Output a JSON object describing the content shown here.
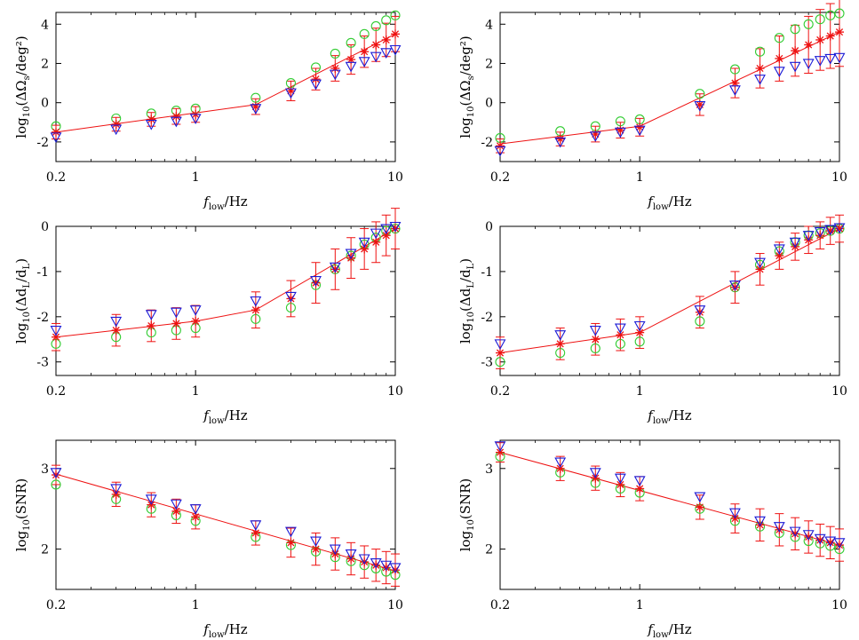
{
  "chart_data": [
    {
      "type": "scatter",
      "x_scale": "log",
      "xlim": [
        0.2,
        10
      ],
      "ylim": [
        -3,
        4.6
      ],
      "x_ticks": [
        0.2,
        1,
        10
      ],
      "x_tick_labels": [
        "0.2",
        "1",
        "10"
      ],
      "y_ticks": [
        -2,
        0,
        2,
        4
      ],
      "y_tick_labels": [
        "-2",
        "0",
        "2",
        "4"
      ],
      "xlabel": {
        "main": "f",
        "sub": "low",
        "rest": "/Hz"
      },
      "ylabel": {
        "pre": "log",
        "sub": "10",
        "rest": "(ΔΩ",
        "sub2": "s",
        "tail": "/deg²)"
      },
      "x": [
        0.2,
        0.4,
        0.6,
        0.8,
        1,
        2,
        3,
        4,
        5,
        6,
        7,
        8,
        9,
        10
      ],
      "series": [
        {
          "name": "green-circles",
          "marker": "circle",
          "color": "#33cc33",
          "values": [
            -1.2,
            -0.8,
            -0.55,
            -0.4,
            -0.3,
            0.25,
            1.0,
            1.8,
            2.5,
            3.05,
            3.5,
            3.9,
            4.2,
            4.45
          ]
        },
        {
          "name": "red-stars",
          "marker": "star",
          "color": "#ee1111",
          "values": [
            -1.5,
            -1.1,
            -0.85,
            -0.7,
            -0.6,
            -0.2,
            0.6,
            1.2,
            1.75,
            2.2,
            2.6,
            2.95,
            3.2,
            3.5
          ],
          "error": [
            0.35,
            0.35,
            0.35,
            0.4,
            0.4,
            0.4,
            0.5,
            0.55,
            0.65,
            0.75,
            0.8,
            0.85,
            0.85,
            0.9
          ]
        },
        {
          "name": "blue-triangles",
          "marker": "triangle-down",
          "color": "#1a1ad6",
          "values": [
            -1.75,
            -1.35,
            -1.1,
            -0.95,
            -0.8,
            -0.3,
            0.5,
            0.95,
            1.45,
            1.85,
            2.1,
            2.35,
            2.55,
            2.7
          ]
        }
      ],
      "fit_line": [
        [
          0.2,
          -1.5
        ],
        [
          2,
          -0.1
        ],
        [
          10,
          3.5
        ]
      ]
    },
    {
      "type": "scatter",
      "x_scale": "log",
      "xlim": [
        0.2,
        10
      ],
      "ylim": [
        -3,
        4.6
      ],
      "x_ticks": [
        0.2,
        1,
        10
      ],
      "x_tick_labels": [
        "0.2",
        "1",
        "10"
      ],
      "y_ticks": [
        -2,
        0,
        2,
        4
      ],
      "y_tick_labels": [
        "-2",
        "0",
        "2",
        "4"
      ],
      "xlabel": {
        "main": "f",
        "sub": "low",
        "rest": "/Hz"
      },
      "ylabel": {
        "pre": "log",
        "sub": "10",
        "rest": "(ΔΩ",
        "sub2": "s",
        "tail": "/deg²)"
      },
      "x": [
        0.2,
        0.4,
        0.6,
        0.8,
        1,
        2,
        3,
        4,
        5,
        6,
        7,
        8,
        9,
        10
      ],
      "series": [
        {
          "name": "green-circles",
          "marker": "circle",
          "color": "#33cc33",
          "values": [
            -1.8,
            -1.45,
            -1.2,
            -0.95,
            -0.85,
            0.45,
            1.7,
            2.6,
            3.3,
            3.75,
            4.0,
            4.25,
            4.45,
            4.55
          ]
        },
        {
          "name": "red-stars",
          "marker": "star",
          "color": "#ee1111",
          "values": [
            -2.2,
            -1.85,
            -1.6,
            -1.4,
            -1.25,
            -0.1,
            1.0,
            1.75,
            2.25,
            2.65,
            2.95,
            3.2,
            3.4,
            3.6
          ]
        },
        {
          "name": "blue-triangles",
          "marker": "triangle-down",
          "color": "#1a1ad6",
          "values": [
            -2.45,
            -2.0,
            -1.7,
            -1.5,
            -1.4,
            -0.15,
            0.65,
            1.2,
            1.6,
            1.85,
            2.0,
            2.15,
            2.25,
            2.3
          ]
        }
      ],
      "errors_red": [
        0.35,
        0.35,
        0.4,
        0.4,
        0.45,
        0.55,
        0.75,
        1.0,
        1.15,
        1.3,
        1.45,
        1.55,
        1.65,
        1.75
      ],
      "fit_line": [
        [
          0.2,
          -2.1
        ],
        [
          1,
          -1.2
        ],
        [
          10,
          3.6
        ]
      ]
    },
    {
      "type": "scatter",
      "x_scale": "log",
      "xlim": [
        0.2,
        10
      ],
      "ylim": [
        -3.3,
        0
      ],
      "x_ticks": [
        0.2,
        1,
        10
      ],
      "x_tick_labels": [
        "0.2",
        "1",
        "10"
      ],
      "y_ticks": [
        -3,
        -2,
        -1,
        0
      ],
      "y_tick_labels": [
        "-3",
        "-2",
        "-1",
        "0"
      ],
      "xlabel": {
        "main": "f",
        "sub": "low",
        "rest": "/Hz"
      },
      "ylabel": {
        "pre": "log",
        "sub": "10",
        "rest": "(Δd",
        "sub2": "L",
        "tail": "/d",
        "sub3": "L",
        "end": ")"
      },
      "x": [
        0.2,
        0.4,
        0.6,
        0.8,
        1,
        2,
        3,
        4,
        5,
        6,
        7,
        8,
        9,
        10
      ],
      "series": [
        {
          "name": "green-circles",
          "marker": "circle",
          "color": "#33cc33",
          "values": [
            -2.6,
            -2.45,
            -2.35,
            -2.3,
            -2.25,
            -2.05,
            -1.8,
            -1.3,
            -0.95,
            -0.65,
            -0.4,
            -0.25,
            -0.1,
            -0.05
          ]
        },
        {
          "name": "red-stars",
          "marker": "star",
          "color": "#ee1111",
          "values": [
            -2.45,
            -2.3,
            -2.2,
            -2.15,
            -2.1,
            -1.85,
            -1.6,
            -1.25,
            -0.95,
            -0.7,
            -0.5,
            -0.35,
            -0.2,
            -0.05
          ],
          "error": [
            0.3,
            0.35,
            0.35,
            0.35,
            0.35,
            0.4,
            0.4,
            0.45,
            0.45,
            0.45,
            0.45,
            0.45,
            0.45,
            0.45
          ]
        },
        {
          "name": "blue-triangles",
          "marker": "triangle-down",
          "color": "#1a1ad6",
          "values": [
            -2.3,
            -2.1,
            -1.95,
            -1.9,
            -1.85,
            -1.65,
            -1.55,
            -1.2,
            -0.9,
            -0.6,
            -0.35,
            -0.15,
            -0.05,
            0.0
          ]
        }
      ],
      "fit_line": [
        [
          0.2,
          -2.45
        ],
        [
          1,
          -2.1
        ],
        [
          2,
          -1.85
        ],
        [
          10,
          -0.05
        ]
      ]
    },
    {
      "type": "scatter",
      "x_scale": "log",
      "xlim": [
        0.2,
        10
      ],
      "ylim": [
        -3.3,
        0
      ],
      "x_ticks": [
        0.2,
        1,
        10
      ],
      "x_tick_labels": [
        "0.2",
        "1",
        "10"
      ],
      "y_ticks": [
        -3,
        -2,
        -1,
        0
      ],
      "y_tick_labels": [
        "-3",
        "-2",
        "-1",
        "0"
      ],
      "xlabel": {
        "main": "f",
        "sub": "low",
        "rest": "/Hz"
      },
      "ylabel": {
        "pre": "log",
        "sub": "10",
        "rest": "(Δd",
        "sub2": "L",
        "tail": "/d",
        "sub3": "L",
        "end": ")"
      },
      "x": [
        0.2,
        0.4,
        0.6,
        0.8,
        1,
        2,
        3,
        4,
        5,
        6,
        7,
        8,
        9,
        10
      ],
      "series": [
        {
          "name": "green-circles",
          "marker": "circle",
          "color": "#33cc33",
          "values": [
            -3.0,
            -2.8,
            -2.7,
            -2.6,
            -2.55,
            -2.1,
            -1.35,
            -0.85,
            -0.55,
            -0.35,
            -0.2,
            -0.15,
            -0.1,
            -0.05
          ]
        },
        {
          "name": "red-stars",
          "marker": "star",
          "color": "#ee1111",
          "values": [
            -2.8,
            -2.6,
            -2.5,
            -2.4,
            -2.35,
            -1.9,
            -1.35,
            -0.95,
            -0.65,
            -0.45,
            -0.3,
            -0.2,
            -0.1,
            -0.05
          ],
          "error": [
            0.35,
            0.35,
            0.35,
            0.35,
            0.35,
            0.35,
            0.35,
            0.35,
            0.3,
            0.3,
            0.3,
            0.3,
            0.3,
            0.3
          ]
        },
        {
          "name": "blue-triangles",
          "marker": "triangle-down",
          "color": "#1a1ad6",
          "values": [
            -2.6,
            -2.4,
            -2.3,
            -2.25,
            -2.2,
            -1.85,
            -1.3,
            -0.8,
            -0.5,
            -0.35,
            -0.2,
            -0.12,
            -0.07,
            -0.03
          ]
        }
      ],
      "fit_line": [
        [
          0.2,
          -2.8
        ],
        [
          1,
          -2.35
        ],
        [
          10,
          -0.05
        ]
      ]
    },
    {
      "type": "scatter",
      "x_scale": "log",
      "xlim": [
        0.2,
        10
      ],
      "ylim": [
        1.5,
        3.35
      ],
      "x_ticks": [
        0.2,
        1,
        10
      ],
      "x_tick_labels": [
        "0.2",
        "1",
        "10"
      ],
      "y_ticks": [
        2,
        3
      ],
      "y_tick_labels": [
        "2",
        "3"
      ],
      "xlabel": {
        "main": "f",
        "sub": "low",
        "rest": "/Hz"
      },
      "ylabel": {
        "pre": "log",
        "sub": "10",
        "rest": "(SNR)"
      },
      "x": [
        0.2,
        0.4,
        0.6,
        0.8,
        1,
        2,
        3,
        4,
        5,
        6,
        7,
        8,
        9,
        10
      ],
      "series": [
        {
          "name": "green-circles",
          "marker": "circle",
          "color": "#33cc33",
          "values": [
            2.8,
            2.62,
            2.5,
            2.42,
            2.35,
            2.15,
            2.05,
            1.97,
            1.9,
            1.85,
            1.8,
            1.76,
            1.72,
            1.68
          ]
        },
        {
          "name": "red-stars",
          "marker": "star",
          "color": "#ee1111",
          "values": [
            2.92,
            2.68,
            2.55,
            2.47,
            2.4,
            2.2,
            2.08,
            2.0,
            1.94,
            1.88,
            1.84,
            1.8,
            1.77,
            1.74
          ],
          "error": [
            0.12,
            0.15,
            0.15,
            0.15,
            0.15,
            0.15,
            0.18,
            0.2,
            0.2,
            0.2,
            0.2,
            0.2,
            0.2,
            0.2
          ]
        },
        {
          "name": "blue-triangles",
          "marker": "triangle-down",
          "color": "#1a1ad6",
          "values": [
            2.95,
            2.75,
            2.62,
            2.56,
            2.5,
            2.3,
            2.22,
            2.1,
            2.0,
            1.94,
            1.88,
            1.83,
            1.8,
            1.77
          ]
        }
      ],
      "fit_line": [
        [
          0.2,
          2.93
        ],
        [
          10,
          1.73
        ]
      ]
    },
    {
      "type": "scatter",
      "x_scale": "log",
      "xlim": [
        0.2,
        10
      ],
      "ylim": [
        1.5,
        3.35
      ],
      "x_ticks": [
        0.2,
        1,
        10
      ],
      "x_tick_labels": [
        "0.2",
        "1",
        "10"
      ],
      "y_ticks": [
        2,
        3
      ],
      "y_tick_labels": [
        "2",
        "3"
      ],
      "xlabel": {
        "main": "f",
        "sub": "low",
        "rest": "/Hz"
      },
      "ylabel": {
        "pre": "log",
        "sub": "10",
        "rest": "(SNR)"
      },
      "x": [
        0.2,
        0.4,
        0.6,
        0.8,
        1,
        2,
        3,
        4,
        5,
        6,
        7,
        8,
        9,
        10
      ],
      "series": [
        {
          "name": "green-circles",
          "marker": "circle",
          "color": "#33cc33",
          "values": [
            3.15,
            2.95,
            2.82,
            2.75,
            2.7,
            2.5,
            2.35,
            2.28,
            2.2,
            2.15,
            2.1,
            2.07,
            2.04,
            2.0
          ]
        },
        {
          "name": "red-stars",
          "marker": "star",
          "color": "#ee1111",
          "values": [
            3.2,
            3.0,
            2.88,
            2.8,
            2.75,
            2.52,
            2.38,
            2.3,
            2.24,
            2.19,
            2.15,
            2.11,
            2.08,
            2.05
          ],
          "error": [
            0.12,
            0.15,
            0.15,
            0.15,
            0.15,
            0.15,
            0.18,
            0.2,
            0.2,
            0.2,
            0.2,
            0.2,
            0.2,
            0.2
          ]
        },
        {
          "name": "blue-triangles",
          "marker": "triangle-down",
          "color": "#1a1ad6",
          "values": [
            3.28,
            3.08,
            2.95,
            2.88,
            2.85,
            2.65,
            2.45,
            2.35,
            2.28,
            2.22,
            2.18,
            2.13,
            2.1,
            2.08
          ]
        }
      ],
      "fit_line": [
        [
          0.2,
          3.2
        ],
        [
          10,
          2.05
        ]
      ]
    }
  ]
}
